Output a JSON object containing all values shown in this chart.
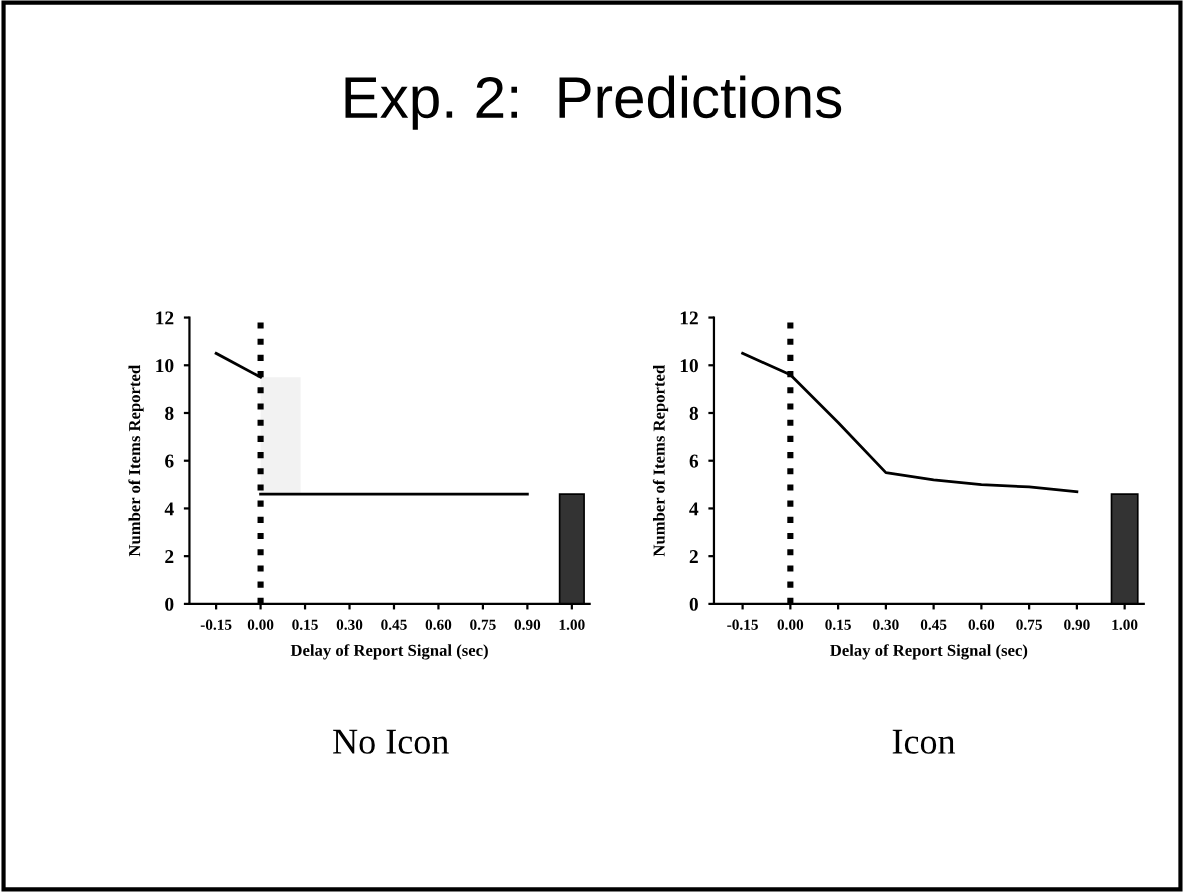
{
  "chart_data": [
    {
      "type": "line",
      "title": "Exp. 2:  Predictions",
      "xlabel": "Delay of Report Signal (sec)",
      "ylabel": "Number of Items Reported",
      "categories": [
        "-0.15",
        "0.00",
        "0.15",
        "0.30",
        "0.45",
        "0.60",
        "0.75",
        "0.90",
        "1.00"
      ],
      "series": [
        {
          "color": "#000000",
          "values": [
            10.5,
            9.5,
            null,
            null,
            null,
            null,
            null,
            null,
            null
          ]
        },
        {
          "color": "#000000",
          "values": [
            null,
            4.6,
            4.6,
            4.6,
            4.6,
            4.6,
            4.6,
            4.6,
            null
          ]
        },
        {
          "type": "bar",
          "color": "#f2f2f2",
          "base": [
            null,
            4.6,
            null,
            null,
            null,
            null,
            null,
            null,
            null
          ],
          "values": [
            null,
            4.9,
            null,
            null,
            null,
            null,
            null,
            null,
            null
          ]
        },
        {
          "type": "bar",
          "color": "#333333",
          "values": [
            null,
            null,
            null,
            null,
            null,
            null,
            null,
            null,
            4.6
          ]
        }
      ],
      "ylim": [
        0,
        12
      ],
      "yticks": [
        0,
        2,
        4,
        6,
        8,
        10,
        12
      ],
      "ref_lines": [
        {
          "axis": "x",
          "value": "0.00",
          "line_style": "dotted",
          "color": "#000000"
        }
      ],
      "annotations": [
        "No Icon"
      ]
    },
    {
      "type": "line",
      "xlabel": "Delay of Report Signal (sec)",
      "ylabel": "Number of Items Reported",
      "categories": [
        "-0.15",
        "0.00",
        "0.15",
        "0.30",
        "0.45",
        "0.60",
        "0.75",
        "0.90",
        "1.00"
      ],
      "series": [
        {
          "color": "#000000",
          "values": [
            10.5,
            9.6,
            7.6,
            5.5,
            5.2,
            5.0,
            4.9,
            4.7,
            null
          ]
        },
        {
          "type": "bar",
          "color": "#333333",
          "values": [
            null,
            null,
            null,
            null,
            null,
            null,
            null,
            null,
            4.6
          ]
        }
      ],
      "ylim": [
        0,
        12
      ],
      "yticks": [
        0,
        2,
        4,
        6,
        8,
        10,
        12
      ],
      "ref_lines": [
        {
          "axis": "x",
          "value": "0.00",
          "line_style": "dotted",
          "color": "#000000"
        }
      ],
      "annotations": [
        "Icon"
      ]
    }
  ]
}
